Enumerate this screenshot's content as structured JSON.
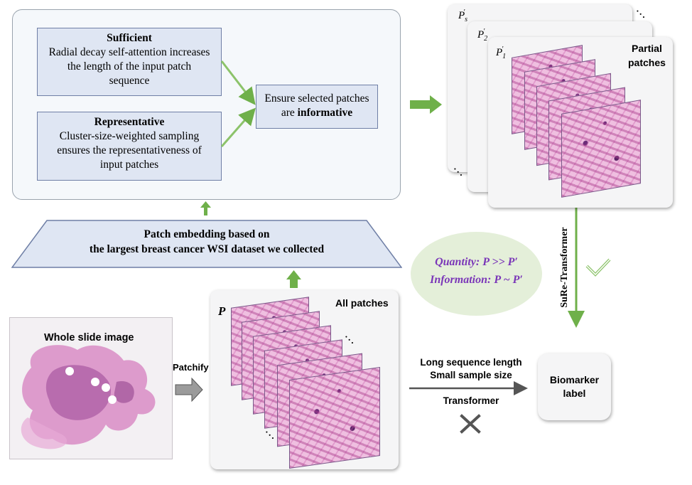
{
  "top_panel": {
    "sufficient": {
      "title": "Sufficient",
      "line1": "Radial decay self-attention increases",
      "line2": "the length of the input patch",
      "line3": "sequence"
    },
    "representative": {
      "title": "Representative",
      "line1": "Cluster-size-weighted sampling",
      "line2": "ensures the representativeness of",
      "line3": "input patches"
    },
    "ensure": {
      "line1": "Ensure selected patches",
      "prefix": "are ",
      "bold": "informative"
    }
  },
  "embedding": {
    "line1": "Patch embedding based on",
    "line2": "the largest breast cancer WSI dataset we collected"
  },
  "wsi": {
    "label": "Whole slide image"
  },
  "patchify": {
    "label": "Patchify"
  },
  "all_patches": {
    "label": "All patches",
    "symbol": "P",
    "ellipsis": "…"
  },
  "partial_patches": {
    "label_line1": "Partial",
    "label_line2": "patches",
    "symbols": [
      "P",
      "P",
      "P"
    ],
    "subscripts": [
      "s",
      "2",
      "1"
    ],
    "prime": "'",
    "ellipsis": "…"
  },
  "bubble": {
    "line1": "Quantity: P >> P′",
    "line2": "Information: P ~ P′"
  },
  "sure_transformer": {
    "label": "SuRe-Transformer"
  },
  "transformer_path": {
    "line1": "Long sequence length",
    "line2": "Small sample size",
    "label": "Transformer"
  },
  "biomarker": {
    "line1": "Biomarker",
    "line2": "label"
  },
  "colors": {
    "green_arrow": "#6fb04a",
    "box_fill": "#dfe6f3",
    "box_border": "#6f7fa6",
    "bubble_fill": "#e4efd9",
    "bubble_text": "#7a36b8",
    "tissue": "#d57fbf"
  }
}
